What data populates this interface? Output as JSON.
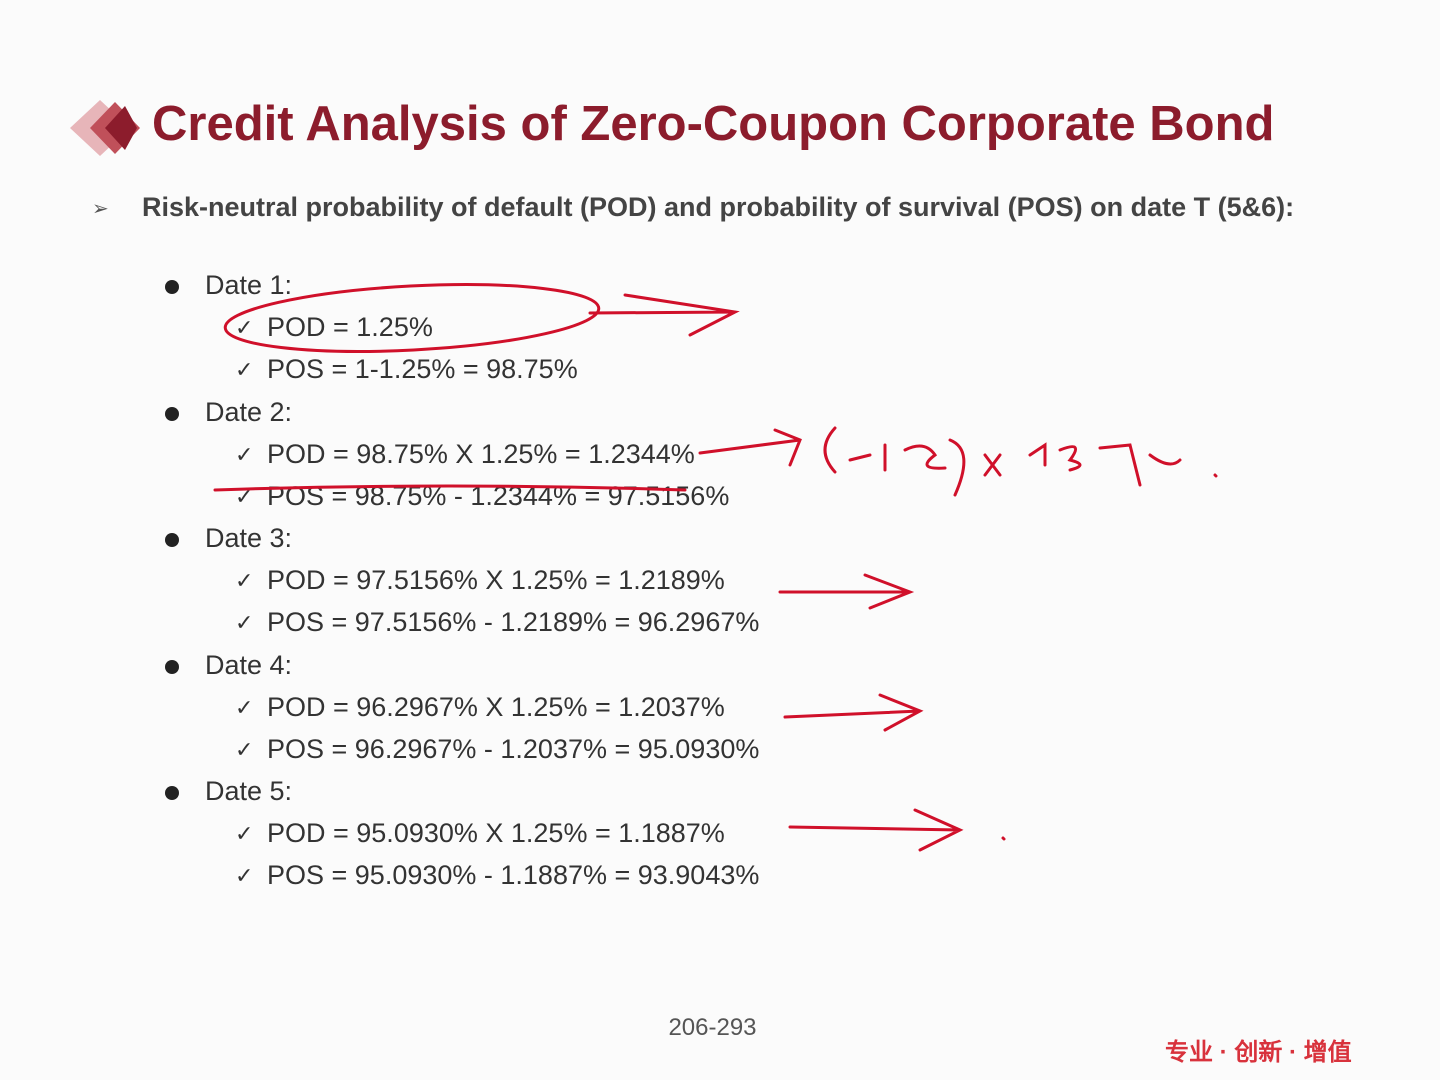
{
  "header": {
    "title": "Credit Analysis of Zero-Coupon Corporate Bond"
  },
  "intro": "Risk-neutral probability of default (POD) and probability of survival (POS) on date T (5&6):",
  "dates": [
    {
      "label": "Date 1:",
      "items": [
        "POD = 1.25%",
        "POS = 1-1.25% = 98.75%"
      ]
    },
    {
      "label": "Date 2:",
      "items": [
        "POD = 98.75% X 1.25% = 1.2344%",
        "POS = 98.75% - 1.2344% = 97.5156%"
      ]
    },
    {
      "label": "Date 3:",
      "items": [
        "POD = 97.5156% X 1.25% = 1.2189%",
        "POS = 97.5156% - 1.2189% = 96.2967%"
      ]
    },
    {
      "label": "Date 4:",
      "items": [
        "POD = 96.2967% X 1.25% = 1.2037%",
        "POS = 96.2967% - 1.2037% = 95.0930%"
      ]
    },
    {
      "label": "Date 5:",
      "items": [
        "POD = 95.0930% X 1.25% = 1.1887%",
        "POS = 95.0930% - 1.1887% = 93.9043%"
      ]
    }
  ],
  "footer": {
    "page": "206-293",
    "slogan": "专业 · 创新 · 增值"
  }
}
